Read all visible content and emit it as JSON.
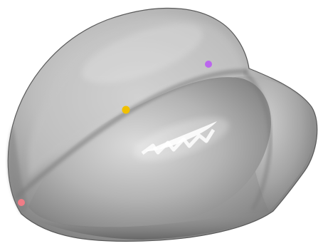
{
  "scene": {
    "background_color": "#ffffff",
    "mesh": {
      "base_color": "#a8a8a8",
      "highlight_color": "#f2f2f2",
      "shadow_color": "#5e5e5e",
      "outline_color": "#555555"
    },
    "markers": [
      {
        "name": "pink-marker",
        "color": "#f07c86"
      },
      {
        "name": "yellow-marker",
        "color": "#f0c000"
      },
      {
        "name": "purple-marker",
        "color": "#bb66ee"
      }
    ]
  }
}
